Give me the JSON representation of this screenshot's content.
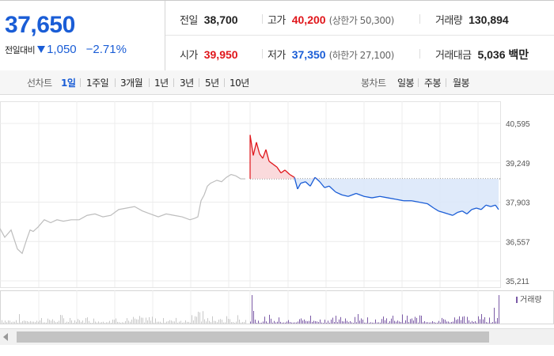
{
  "summary": {
    "price": "37,650",
    "change_label": "전일대비",
    "change_value": "1,050",
    "change_rate": "−2.71%",
    "prev_close": {
      "label": "전일",
      "value": "38,700"
    },
    "high": {
      "label": "고가",
      "value": "40,200",
      "limit": "(상한가 50,300)"
    },
    "volume": {
      "label": "거래량",
      "value": "130,894"
    },
    "open": {
      "label": "시가",
      "value": "39,950"
    },
    "low": {
      "label": "저가",
      "value": "37,350",
      "limit": "(하한가 27,100)"
    },
    "amount": {
      "label": "거래대금",
      "value": "5,036 백만"
    }
  },
  "tabs": {
    "line_label": "선차트",
    "line_items": [
      "1일",
      "1주일",
      "3개월",
      "1년",
      "3년",
      "5년",
      "10년"
    ],
    "candle_label": "봉차트",
    "candle_items": [
      "일봉",
      "주봉",
      "월봉"
    ]
  },
  "colors": {
    "up": "#e0161b",
    "down": "#1a5dd6",
    "prev_day": "#bdbdbd"
  },
  "chart_data": {
    "type": "line",
    "title": "",
    "ylim": [
      35211,
      40595
    ],
    "y_ticks": [
      "40,595",
      "39,249",
      "37,903",
      "36,557",
      "35,211"
    ],
    "y_tick_values": [
      40595,
      39249,
      37903,
      36557,
      35211
    ],
    "reference_price": 38700,
    "grid": true,
    "series": [
      {
        "name": "",
        "x": [
          0,
          6,
          14,
          22,
          28,
          34,
          38,
          42,
          48,
          56,
          64,
          72,
          80,
          90,
          100,
          110,
          120,
          130,
          140,
          150,
          160,
          170,
          180,
          190,
          200,
          210,
          220,
          230,
          240,
          246,
          250,
          254,
          258,
          262,
          266,
          270,
          274,
          280,
          286,
          292,
          298,
          304,
          310
        ],
        "values": [
          37000,
          36700,
          36950,
          36300,
          36150,
          36650,
          36950,
          36900,
          37050,
          37300,
          37200,
          37300,
          37250,
          37300,
          37300,
          37450,
          37500,
          37400,
          37450,
          37650,
          37700,
          37750,
          37600,
          37500,
          37400,
          37500,
          37450,
          37400,
          37300,
          37350,
          37400,
          37950,
          38150,
          38450,
          38550,
          38600,
          38650,
          38600,
          38750,
          38850,
          38800,
          38700,
          38700
        ]
      },
      {
        "name": "",
        "x": [
          316,
          318,
          320,
          324,
          328,
          332,
          336,
          340,
          345,
          350,
          355,
          360,
          366,
          372,
          376,
          380,
          386,
          392,
          398,
          404,
          410,
          416,
          424,
          432,
          440,
          450,
          460,
          470,
          480,
          490,
          500,
          510,
          520,
          530,
          540,
          548,
          554,
          560,
          566,
          572,
          578,
          584,
          590,
          596,
          602,
          608,
          614,
          620,
          626,
          630
        ],
        "values": [
          40200,
          39850,
          39500,
          39950,
          39550,
          39400,
          39700,
          39300,
          39200,
          39100,
          38900,
          39000,
          38850,
          38750,
          38350,
          38550,
          38600,
          38450,
          38750,
          38600,
          38400,
          38450,
          38250,
          38150,
          38100,
          38200,
          38100,
          38050,
          38100,
          38050,
          38000,
          37950,
          37950,
          37900,
          37850,
          37700,
          37600,
          37550,
          37500,
          37450,
          37550,
          37600,
          37500,
          37650,
          37700,
          37650,
          37800,
          37750,
          37800,
          37650
        ]
      }
    ],
    "volume_label": "거래량"
  }
}
